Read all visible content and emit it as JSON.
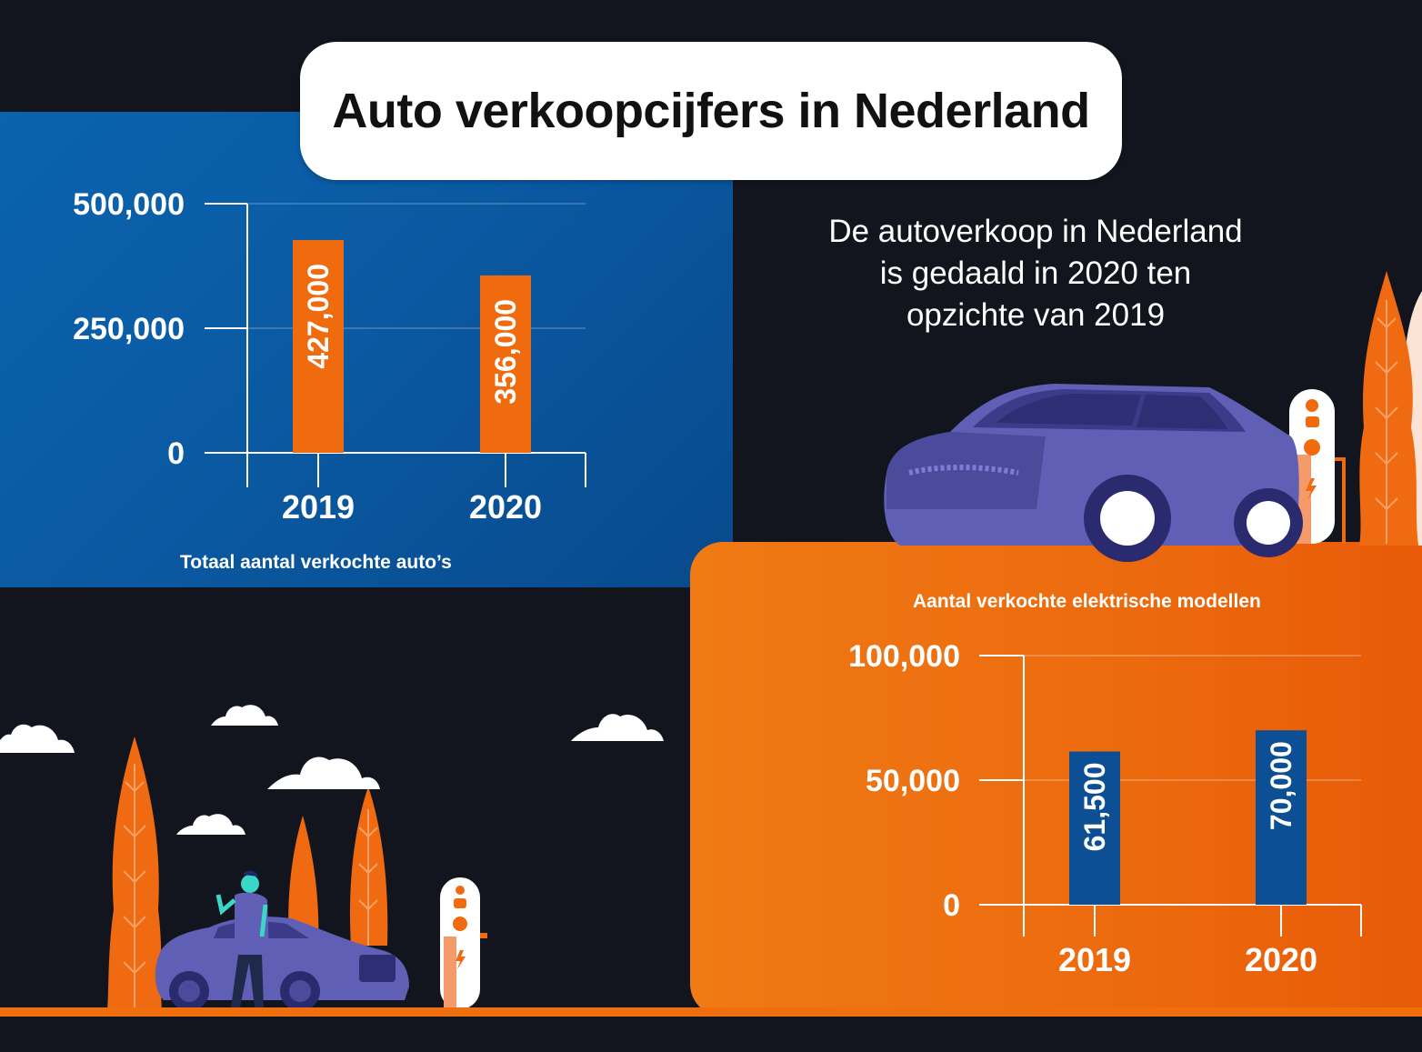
{
  "title": "Auto verkoopcijfers in Nederland",
  "subtitle_lines": [
    "De autoverkoop in Nederland",
    "is gedaald in 2020 ten",
    "opzichte van 2019"
  ],
  "colors": {
    "blue_panel": "#0a5aa3",
    "orange_panel": "#ec6a0e",
    "orange_bar": "#f06a0e",
    "blue_bar": "#0c4f94",
    "dark_bg": "#12151e"
  },
  "chart_data": [
    {
      "type": "bar",
      "caption": "Totaal aantal verkochte auto’s",
      "categories": [
        "2019",
        "2020"
      ],
      "values": [
        427000,
        356000
      ],
      "value_labels": [
        "427,000",
        "356,000"
      ],
      "yticks": [
        0,
        250000,
        500000
      ],
      "ytick_labels": [
        "0",
        "250,000",
        "500,000"
      ],
      "ylim": [
        0,
        500000
      ],
      "grid": true
    },
    {
      "type": "bar",
      "caption": "Aantal verkochte elektrische modellen",
      "categories": [
        "2019",
        "2020"
      ],
      "values": [
        61500,
        70000
      ],
      "value_labels": [
        "61,500",
        "70,000"
      ],
      "yticks": [
        0,
        50000,
        100000
      ],
      "ytick_labels": [
        "0",
        "50,000",
        "100,000"
      ],
      "ylim": [
        0,
        100000
      ],
      "grid": true
    }
  ]
}
